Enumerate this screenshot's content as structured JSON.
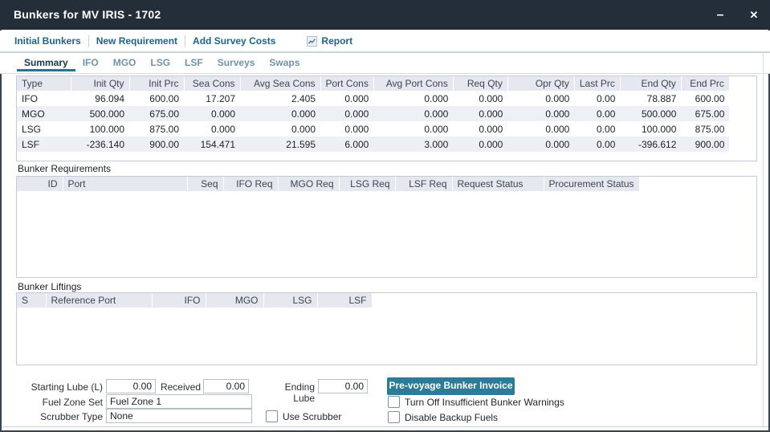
{
  "window": {
    "title": "Bunkers for MV IRIS - 1702",
    "minimize_icon": "–",
    "close_icon": "✕"
  },
  "toolbar": {
    "links": [
      "Initial Bunkers",
      "New Requirement",
      "Add Survey Costs"
    ],
    "report_label": "Report"
  },
  "tabs": {
    "items": [
      "Summary",
      "IFO",
      "MGO",
      "LSG",
      "LSF",
      "Surveys",
      "Swaps"
    ],
    "active": "Summary"
  },
  "summary_table": {
    "columns": [
      "Type",
      "Init Qty",
      "Init Prc",
      "Sea Cons",
      "Avg Sea Cons",
      "Port Cons",
      "Avg Port Cons",
      "Req Qty",
      "Opr Qty",
      "Last Prc",
      "End Qty",
      "End Prc"
    ],
    "rows": [
      [
        "IFO",
        "96.094",
        "600.00",
        "17.207",
        "2.405",
        "0.000",
        "0.000",
        "0.000",
        "0.000",
        "0.00",
        "78.887",
        "600.00"
      ],
      [
        "MGO",
        "500.000",
        "675.00",
        "0.000",
        "0.000",
        "0.000",
        "0.000",
        "0.000",
        "0.000",
        "0.00",
        "500.000",
        "675.00"
      ],
      [
        "LSG",
        "100.000",
        "875.00",
        "0.000",
        "0.000",
        "0.000",
        "0.000",
        "0.000",
        "0.000",
        "0.00",
        "100.000",
        "875.00"
      ],
      [
        "LSF",
        "-236.140",
        "900.00",
        "154.471",
        "21.595",
        "6.000",
        "3.000",
        "0.000",
        "0.000",
        "0.00",
        "-396.612",
        "900.00"
      ]
    ]
  },
  "bunker_requirements": {
    "title": "Bunker Requirements",
    "columns": [
      "ID",
      "Port",
      "Seq",
      "IFO Req",
      "MGO Req",
      "LSG Req",
      "LSF Req",
      "Request Status",
      "Procurement Status"
    ],
    "rows": []
  },
  "bunker_liftings": {
    "title": "Bunker Liftings",
    "columns": [
      "S",
      "Reference Port",
      "IFO",
      "MGO",
      "LSG",
      "LSF"
    ],
    "rows": []
  },
  "form": {
    "starting_lube_label": "Starting Lube (L)",
    "starting_lube_value": "0.00",
    "received_label": "Received",
    "received_value": "0.00",
    "ending_lube_label": "Ending Lube",
    "ending_lube_value": "0.00",
    "fuel_zone_label": "Fuel Zone Set",
    "fuel_zone_value": "Fuel Zone 1",
    "scrubber_type_label": "Scrubber Type",
    "scrubber_type_value": "None",
    "invoice_button": "Pre-voyage Bunker Invoice",
    "warnings_checkbox": "Turn Off Insufficient Bunker Warnings",
    "use_scrubber_checkbox": "Use Scrubber",
    "backup_checkbox": "Disable Backup Fuels"
  },
  "colors": {
    "titlebar": "#232e38",
    "accent": "#2e7b97",
    "link": "#1d6488",
    "blue_value": "#8084d4"
  }
}
